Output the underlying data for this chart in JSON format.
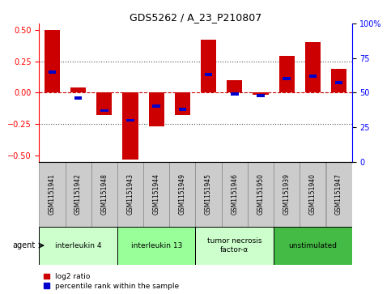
{
  "title": "GDS5262 / A_23_P210807",
  "samples": [
    "GSM1151941",
    "GSM1151942",
    "GSM1151948",
    "GSM1151943",
    "GSM1151944",
    "GSM1151949",
    "GSM1151945",
    "GSM1151946",
    "GSM1151950",
    "GSM1151939",
    "GSM1151940",
    "GSM1151947"
  ],
  "log2_ratio": [
    0.5,
    0.04,
    -0.18,
    -0.53,
    -0.27,
    -0.18,
    0.42,
    0.1,
    -0.02,
    0.29,
    0.4,
    0.19
  ],
  "percentile_rank": [
    65,
    46,
    37,
    30,
    40,
    38,
    63,
    49,
    48,
    60,
    62,
    57
  ],
  "ylim": [
    -0.55,
    0.55
  ],
  "yticks_left": [
    -0.5,
    -0.25,
    0,
    0.25,
    0.5
  ],
  "yticks_right": [
    0,
    25,
    50,
    75,
    100
  ],
  "dotted_lines": [
    -0.25,
    0.25
  ],
  "bar_color": "#cc0000",
  "percentile_color": "#0000cc",
  "hline_color": "#cc0000",
  "dotted_color": "#555555",
  "agent_groups": [
    {
      "label": "interleukin 4",
      "start": 0,
      "end": 3,
      "color": "#ccffcc"
    },
    {
      "label": "interleukin 13",
      "start": 3,
      "end": 6,
      "color": "#99ff99"
    },
    {
      "label": "tumor necrosis\nfactor-α",
      "start": 6,
      "end": 9,
      "color": "#ccffcc"
    },
    {
      "label": "unstimulated",
      "start": 9,
      "end": 12,
      "color": "#44bb44"
    }
  ],
  "legend_bar_label": "log2 ratio",
  "legend_pct_label": "percentile rank within the sample",
  "xlabel_agent": "agent",
  "bar_width": 0.6,
  "percentile_bar_width": 0.3,
  "percentile_bar_height": 0.025,
  "sample_box_color": "#cccccc",
  "sample_box_edge": "#888888"
}
